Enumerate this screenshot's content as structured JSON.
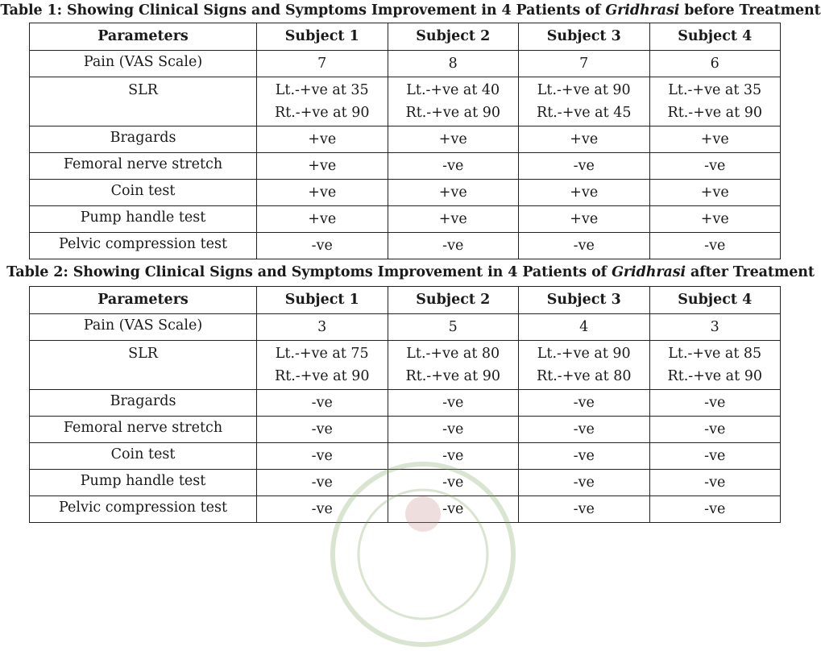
{
  "table1": {
    "caption_prefix": "Table 1: Showing Clinical Signs and Symptoms Improvement in 4 Patients of ",
    "caption_italic": "Gridhrasi",
    "caption_suffix": " before Treatment",
    "headers": [
      "Parameters",
      "Subject 1",
      "Subject 2",
      "Subject 3",
      "Subject 4"
    ],
    "pain": {
      "label": "Pain (VAS Scale)",
      "values": [
        "7",
        "8",
        "7",
        "6"
      ]
    },
    "slr": {
      "label": "SLR",
      "values": [
        [
          "Lt.-+ve at 35",
          "Rt.-+ve at 90"
        ],
        [
          "Lt.-+ve at 40",
          "Rt.-+ve at 90"
        ],
        [
          "Lt.-+ve at 90",
          "Rt.-+ve at 45"
        ],
        [
          "Lt.-+ve at 35",
          "Rt.-+ve at 90"
        ]
      ]
    },
    "rows": [
      {
        "label": "Bragards",
        "values": [
          "+ve",
          "+ve",
          "+ve",
          "+ve"
        ]
      },
      {
        "label": "Femoral nerve stretch",
        "values": [
          "+ve",
          "-ve",
          "-ve",
          "-ve"
        ]
      },
      {
        "label": "Coin test",
        "values": [
          "+ve",
          "+ve",
          "+ve",
          "+ve"
        ]
      },
      {
        "label": "Pump handle test",
        "values": [
          "+ve",
          "+ve",
          "+ve",
          "+ve"
        ]
      },
      {
        "label": "Pelvic compression test",
        "values": [
          "-ve",
          "-ve",
          "-ve",
          "-ve"
        ]
      }
    ]
  },
  "table2": {
    "caption_prefix": "Table 2: Showing Clinical Signs and Symptoms Improvement in 4 Patients of ",
    "caption_italic": "Gridhrasi",
    "caption_suffix": " after Treatment",
    "headers": [
      "Parameters",
      "Subject 1",
      "Subject 2",
      "Subject 3",
      "Subject 4"
    ],
    "pain": {
      "label": "Pain (VAS Scale)",
      "values": [
        "3",
        "5",
        "4",
        "3"
      ]
    },
    "slr": {
      "label": "SLR",
      "values": [
        [
          "Lt.-+ve at 75",
          "Rt.-+ve at 90"
        ],
        [
          "Lt.-+ve at 80",
          "Rt.-+ve at 90"
        ],
        [
          "Lt.-+ve at 90",
          "Rt.-+ve at 80"
        ],
        [
          "Lt.-+ve at 85",
          "Rt.-+ve at 90"
        ]
      ]
    },
    "rows": [
      {
        "label": "Bragards",
        "values": [
          "-ve",
          "-ve",
          "-ve",
          "-ve"
        ]
      },
      {
        "label": "Femoral nerve stretch",
        "values": [
          "-ve",
          "-ve",
          "-ve",
          "-ve"
        ]
      },
      {
        "label": "Coin test",
        "values": [
          "-ve",
          "-ve",
          "-ve",
          "-ve"
        ]
      },
      {
        "label": "Pump handle test",
        "values": [
          "-ve",
          "-ve",
          "-ve",
          "-ve"
        ]
      },
      {
        "label": "Pelvic compression test",
        "values": [
          "-ve",
          "-ve",
          "-ve",
          "-ve"
        ]
      }
    ]
  },
  "watermark": {
    "icon": "journal-seal-icon",
    "color": "#7aa35a"
  }
}
